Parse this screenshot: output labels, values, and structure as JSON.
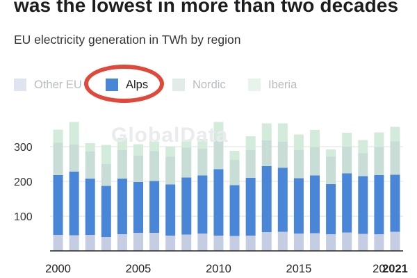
{
  "headline": "was the lowest in more than two decades",
  "subtitle": "EU electricity generation in TWh by region",
  "watermark": "GlobalData",
  "legend": [
    {
      "label": "Other EU",
      "color": "#c5cde3",
      "active": false
    },
    {
      "label": "Alps",
      "color": "#4a86d8",
      "active": true
    },
    {
      "label": "Nordic",
      "color": "#c8ddd6",
      "active": false
    },
    {
      "label": "Iberia",
      "color": "#d3ebdb",
      "active": false
    }
  ],
  "colors": {
    "highlight": "#e0483a",
    "grid": "#dde1e6",
    "axis": "#222222"
  },
  "chart_data": {
    "type": "bar",
    "stacked": true,
    "title": "EU electricity generation in TWh by region",
    "xlabel": "",
    "ylabel": "",
    "ylim": [
      0,
      370
    ],
    "yticks": [
      100,
      200,
      300
    ],
    "grid": true,
    "categories": [
      "2000",
      "2001",
      "2002",
      "2003",
      "2004",
      "2005",
      "2006",
      "2007",
      "2008",
      "2009",
      "2010",
      "2011",
      "2012",
      "2013",
      "2014",
      "2015",
      "2016",
      "2017",
      "2018",
      "2019",
      "2020",
      "2021"
    ],
    "xtick_labels": [
      {
        "category": "2000",
        "label": "2000",
        "bold": false
      },
      {
        "category": "2005",
        "label": "2005",
        "bold": false
      },
      {
        "category": "2010",
        "label": "2010",
        "bold": false
      },
      {
        "category": "2015",
        "label": "2015",
        "bold": false
      },
      {
        "category": "2020",
        "label": "20",
        "bold": false
      },
      {
        "category": "2021",
        "label": "2021",
        "bold": true
      }
    ],
    "series": [
      {
        "name": "Other EU",
        "color": "#c5cde3",
        "values": [
          46,
          45,
          46,
          40,
          48,
          52,
          52,
          44,
          47,
          50,
          44,
          43,
          44,
          54,
          55,
          50,
          51,
          48,
          53,
          49,
          48,
          55
        ]
      },
      {
        "name": "Alps",
        "color": "#4a86d8",
        "values": [
          172,
          183,
          162,
          147,
          160,
          146,
          149,
          147,
          164,
          167,
          191,
          146,
          166,
          190,
          184,
          159,
          166,
          144,
          170,
          166,
          170,
          164
        ]
      },
      {
        "name": "Nordic",
        "color": "#c8ddd6",
        "values": [
          93,
          78,
          78,
          63,
          82,
          76,
          86,
          80,
          86,
          77,
          81,
          73,
          80,
          74,
          75,
          81,
          82,
          79,
          77,
          66,
          81,
          96
        ]
      },
      {
        "name": "Iberia",
        "color": "#d3ebdb",
        "values": [
          38,
          65,
          24,
          55,
          35,
          33,
          27,
          29,
          22,
          28,
          55,
          26,
          40,
          49,
          53,
          45,
          49,
          21,
          40,
          38,
          42,
          42
        ]
      }
    ]
  }
}
